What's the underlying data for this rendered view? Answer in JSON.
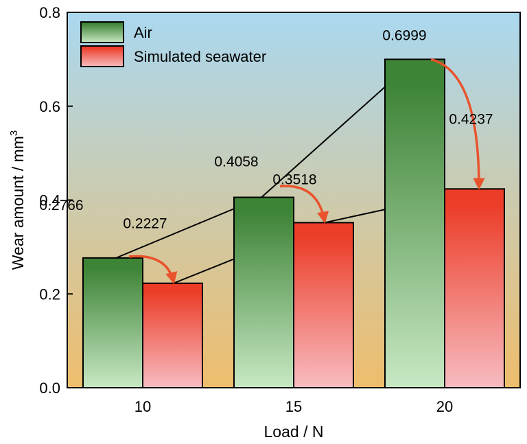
{
  "chart_data": {
    "type": "bar",
    "categories": [
      "10",
      "15",
      "20"
    ],
    "series": [
      {
        "name": "Air",
        "values": [
          0.2766,
          0.4058,
          0.6999
        ]
      },
      {
        "name": "Simulated seawater",
        "values": [
          0.2227,
          0.3518,
          0.4237
        ]
      }
    ],
    "data_labels": [
      [
        "0.2766",
        "0.4058",
        "0.6999"
      ],
      [
        "0.2227",
        "0.3518",
        "0.4237"
      ]
    ],
    "xlabel": "Load / N",
    "ylabel_main": "Wear amount / mm",
    "ylabel_sup": "3",
    "ylim": [
      0,
      0.8
    ],
    "yticks": [
      "0.0",
      "0.2",
      "0.4",
      "0.6",
      "0.8"
    ],
    "legend_position": "top-left",
    "colors": {
      "air_top": "#3e8437",
      "air_bottom": "#c8e8c4",
      "sea_top": "#ec3d28",
      "sea_bottom": "#f7bcc1",
      "bg_top": "#aad8f0",
      "bg_bottom": "#eebd6c",
      "arrow": "#e9532c",
      "connector": "#000000"
    }
  }
}
